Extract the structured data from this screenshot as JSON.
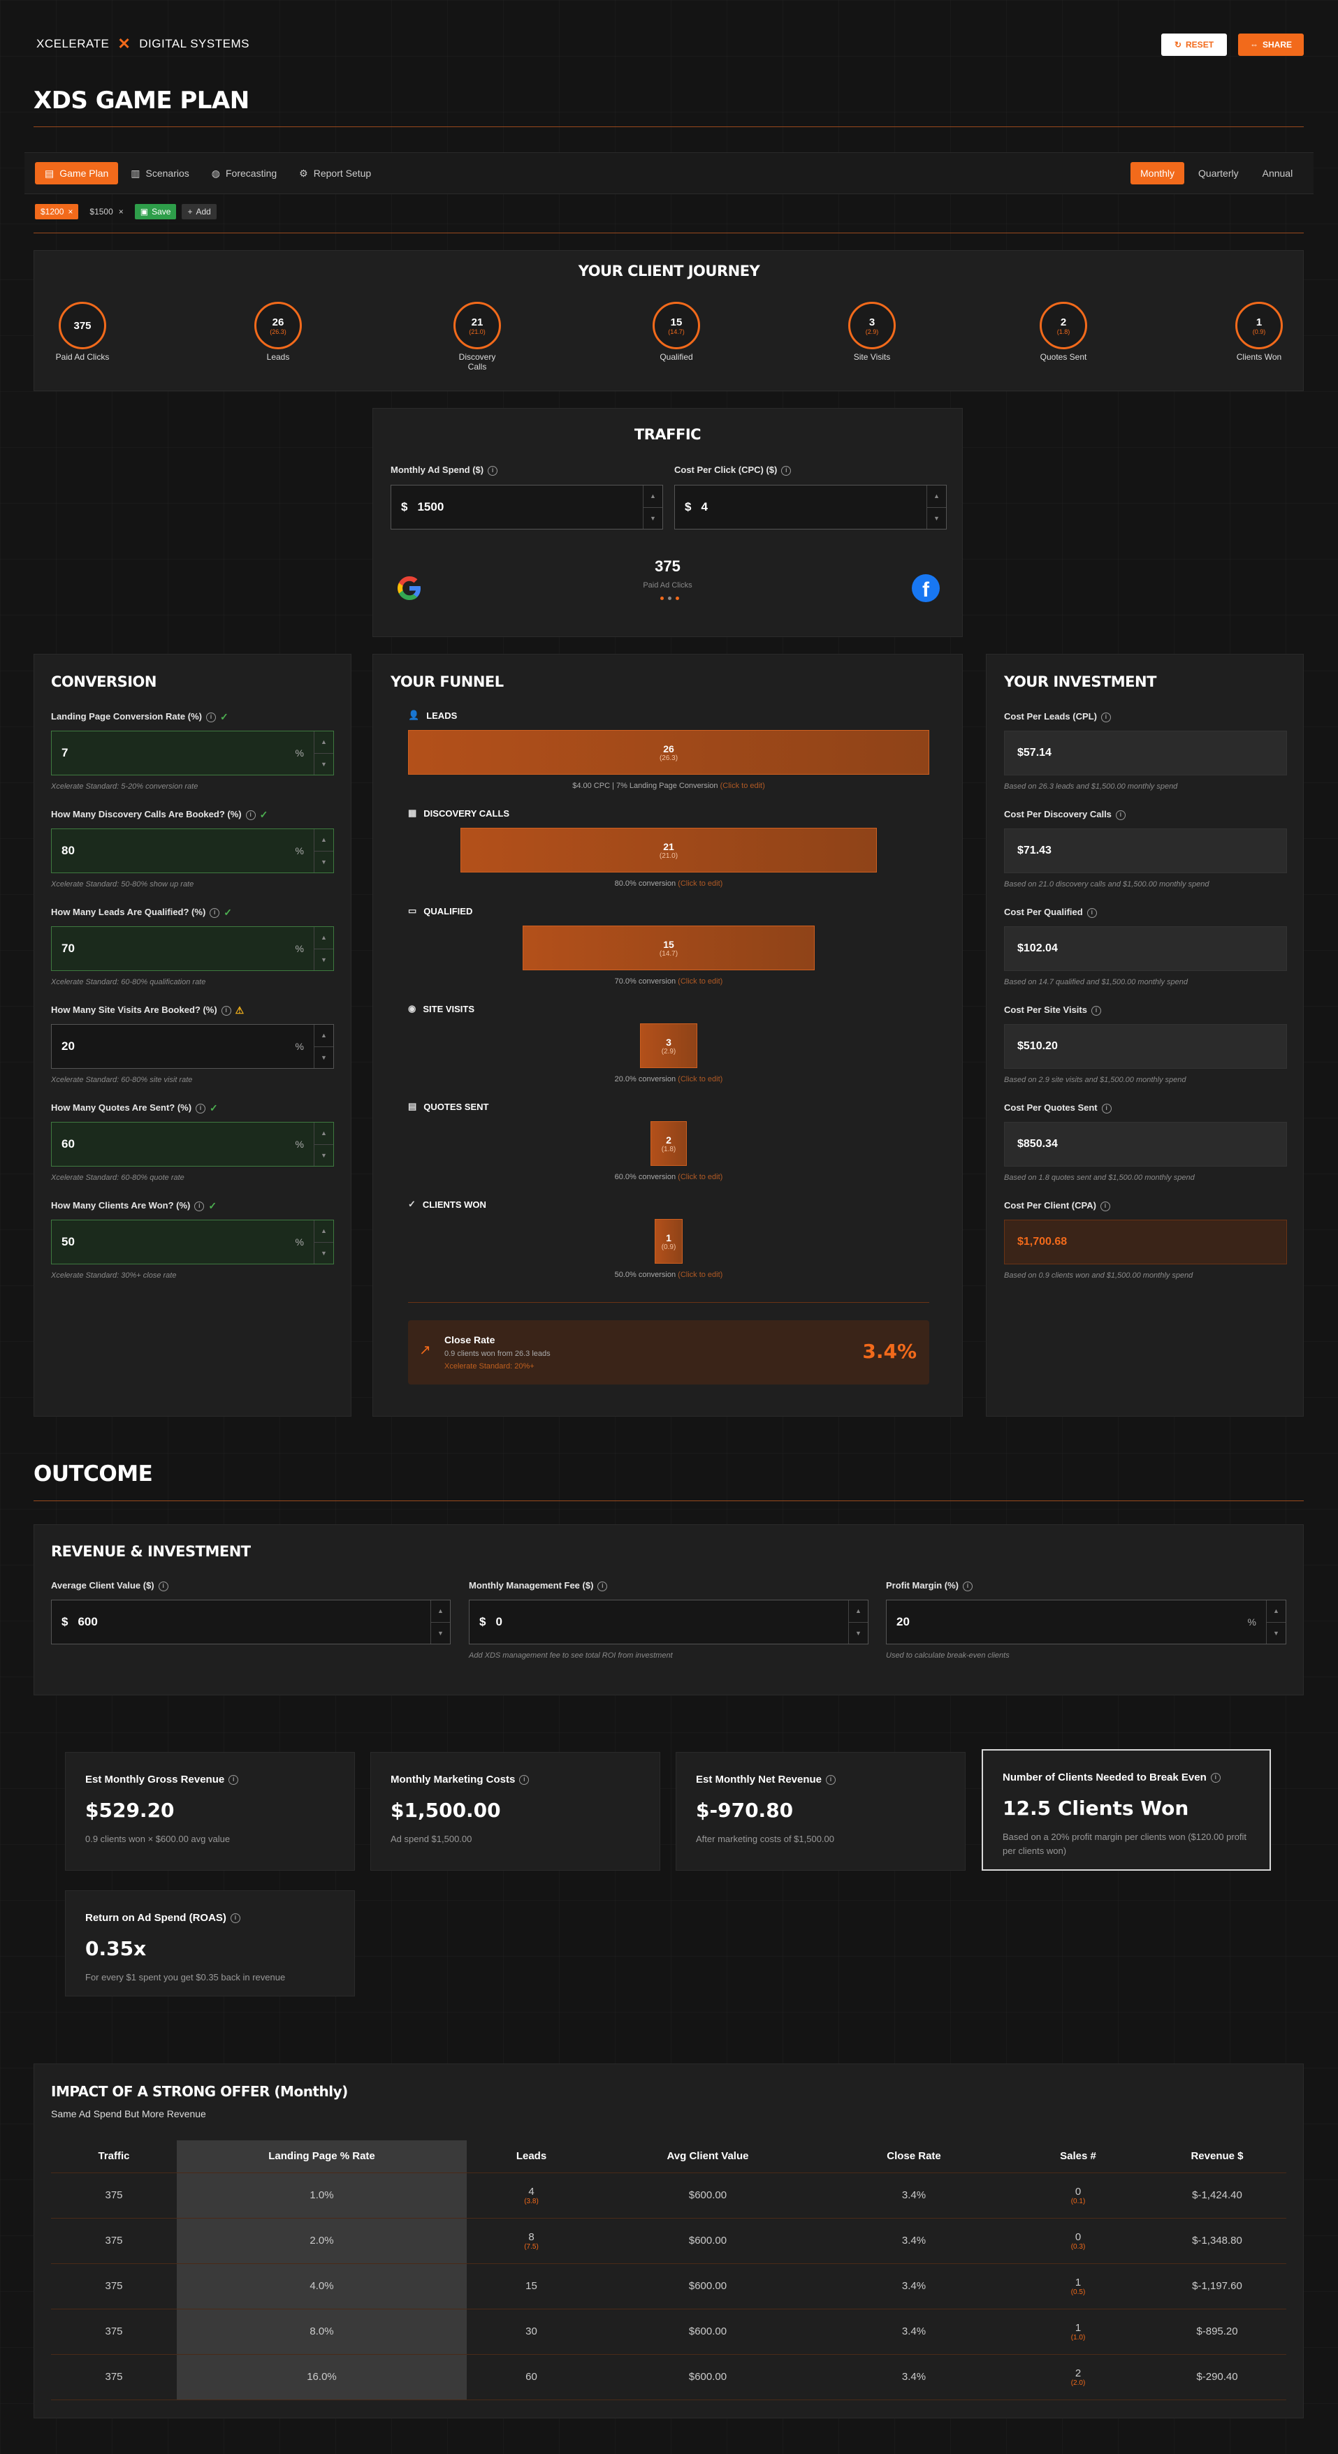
{
  "brand": {
    "name_left": "XCELERATE",
    "name_right": "DIGITAL SYSTEMS"
  },
  "header_buttons": {
    "reset": "RESET",
    "share": "SHARE"
  },
  "page_title": "XDS GAME PLAN",
  "tabs": [
    "Game Plan",
    "Scenarios",
    "Forecasting",
    "Report Setup"
  ],
  "periods": [
    "Monthly",
    "Quarterly",
    "Annual"
  ],
  "scenario_bar": {
    "chips": [
      "$1200",
      "$1500"
    ],
    "save": "Save",
    "add": "Add"
  },
  "journey": {
    "title": "YOUR CLIENT JOURNEY",
    "steps": [
      {
        "value": "375",
        "sub": "",
        "label": "Paid Ad Clicks"
      },
      {
        "value": "26",
        "sub": "(26.3)",
        "label": "Leads"
      },
      {
        "value": "21",
        "sub": "(21.0)",
        "label": "Discovery Calls"
      },
      {
        "value": "15",
        "sub": "(14.7)",
        "label": "Qualified"
      },
      {
        "value": "3",
        "sub": "(2.9)",
        "label": "Site Visits"
      },
      {
        "value": "2",
        "sub": "(1.8)",
        "label": "Quotes Sent"
      },
      {
        "value": "1",
        "sub": "(0.9)",
        "label": "Clients Won"
      }
    ]
  },
  "traffic": {
    "title": "TRAFFIC",
    "spend_label": "Monthly Ad Spend ($)",
    "spend_value": "1500",
    "cpc_label": "Cost Per Click (CPC) ($)",
    "cpc_value": "4",
    "currency": "$",
    "clicks": "375",
    "clicks_label": "Paid Ad Clicks"
  },
  "conversion": {
    "title": "CONVERSION",
    "fields": [
      {
        "label": "Landing Page Conversion Rate (%)",
        "value": "7",
        "hint": "Xcelerate Standard: 5-20% conversion rate",
        "status": "ok"
      },
      {
        "label": "How Many Discovery Calls Are Booked? (%)",
        "value": "80",
        "hint": "Xcelerate Standard: 50-80% show up rate",
        "status": "ok"
      },
      {
        "label": "How Many Leads Are Qualified? (%)",
        "value": "70",
        "hint": "Xcelerate Standard: 60-80% qualification rate",
        "status": "ok"
      },
      {
        "label": "How Many Site Visits Are Booked? (%)",
        "value": "20",
        "hint": "Xcelerate Standard: 60-80% site visit rate",
        "status": "warn"
      },
      {
        "label": "How Many Quotes Are Sent? (%)",
        "value": "60",
        "hint": "Xcelerate Standard: 60-80% quote rate",
        "status": "ok"
      },
      {
        "label": "How Many Clients Are Won? (%)",
        "value": "50",
        "hint": "Xcelerate Standard: 30%+ close rate",
        "status": "ok"
      }
    ],
    "pct": "%"
  },
  "funnel": {
    "title": "YOUR FUNNEL",
    "click_edit": "(Click to edit)",
    "stages": [
      {
        "label": "LEADS",
        "value": "26",
        "sub": "(26.3)",
        "note": "$4.00 CPC | 7% Landing Page Conversion",
        "width_pct": 100
      },
      {
        "label": "DISCOVERY CALLS",
        "value": "21",
        "sub": "(21.0)",
        "note": "80.0% conversion",
        "width_pct": 80
      },
      {
        "label": "QUALIFIED",
        "value": "15",
        "sub": "(14.7)",
        "note": "70.0% conversion",
        "width_pct": 56
      },
      {
        "label": "SITE VISITS",
        "value": "3",
        "sub": "(2.9)",
        "note": "20.0% conversion",
        "width_pct": 11
      },
      {
        "label": "QUOTES SENT",
        "value": "2",
        "sub": "(1.8)",
        "note": "60.0% conversion",
        "width_pct": 7
      },
      {
        "label": "CLIENTS WON",
        "value": "1",
        "sub": "(0.9)",
        "note": "50.0% conversion",
        "width_pct": 5
      }
    ],
    "close_rate": {
      "title": "Close Rate",
      "desc": "0.9 clients won from 26.3 leads",
      "standard": "Xcelerate Standard: 20%+",
      "value": "3.4%"
    }
  },
  "investment": {
    "title": "YOUR INVESTMENT",
    "items": [
      {
        "label": "Cost Per Leads (CPL)",
        "value": "$57.14",
        "note": "Based on 26.3 leads and $1,500.00 monthly spend"
      },
      {
        "label": "Cost Per Discovery Calls",
        "value": "$71.43",
        "note": "Based on 21.0 discovery calls and $1,500.00 monthly spend"
      },
      {
        "label": "Cost Per Qualified",
        "value": "$102.04",
        "note": "Based on 14.7 qualified and $1,500.00 monthly spend"
      },
      {
        "label": "Cost Per Site Visits",
        "value": "$510.20",
        "note": "Based on 2.9 site visits and $1,500.00 monthly spend"
      },
      {
        "label": "Cost Per Quotes Sent",
        "value": "$850.34",
        "note": "Based on 1.8 quotes sent and $1,500.00 monthly spend"
      },
      {
        "label": "Cost Per Client (CPA)",
        "value": "$1,700.68",
        "note": "Based on 0.9 clients won and $1,500.00 monthly spend"
      }
    ]
  },
  "outcome": {
    "title": "OUTCOME",
    "rev_title": "REVENUE & INVESTMENT",
    "acv_label": "Average Client Value ($)",
    "acv_value": "600",
    "fee_label": "Monthly Management Fee ($)",
    "fee_value": "0",
    "fee_hint": "Add XDS management fee to see total ROI from investment",
    "margin_label": "Profit Margin (%)",
    "margin_value": "20",
    "margin_hint": "Used to calculate break-even clients"
  },
  "metrics": [
    {
      "title": "Est Monthly Gross Revenue",
      "value": "$529.20",
      "desc": "0.9 clients won × $600.00 avg value"
    },
    {
      "title": "Monthly Marketing Costs",
      "value": "$1,500.00",
      "desc": "Ad spend $1,500.00"
    },
    {
      "title": "Est Monthly Net Revenue",
      "value": "$-970.80",
      "desc": "After marketing costs of $1,500.00"
    },
    {
      "title": "Number of Clients Needed to Break Even",
      "value": "12.5 Clients Won",
      "desc": "Based on a 20% profit margin per clients won ($120.00 profit per clients won)"
    },
    {
      "title": "Return on Ad Spend (ROAS)",
      "value": "0.35x",
      "desc": "For every $1 spent you get $0.35 back in revenue"
    }
  ],
  "impact": {
    "title": "IMPACT OF A STRONG OFFER (Monthly)",
    "subtitle": "Same Ad Spend But More Revenue",
    "columns": [
      "Traffic",
      "Landing Page % Rate",
      "Leads",
      "Avg Client Value",
      "Close Rate",
      "Sales #",
      "Revenue $"
    ],
    "rows": [
      {
        "traffic": "375",
        "rate": "1.0%",
        "leads": "4",
        "leads_sub": "(3.8)",
        "acv": "$600.00",
        "close": "3.4%",
        "sales": "0",
        "sales_sub": "(0.1)",
        "rev": "$-1,424.40"
      },
      {
        "traffic": "375",
        "rate": "2.0%",
        "leads": "8",
        "leads_sub": "(7.5)",
        "acv": "$600.00",
        "close": "3.4%",
        "sales": "0",
        "sales_sub": "(0.3)",
        "rev": "$-1,348.80"
      },
      {
        "traffic": "375",
        "rate": "4.0%",
        "leads": "15",
        "leads_sub": "",
        "acv": "$600.00",
        "close": "3.4%",
        "sales": "1",
        "sales_sub": "(0.5)",
        "rev": "$-1,197.60"
      },
      {
        "traffic": "375",
        "rate": "8.0%",
        "leads": "30",
        "leads_sub": "",
        "acv": "$600.00",
        "close": "3.4%",
        "sales": "1",
        "sales_sub": "(1.0)",
        "rev": "$-895.20"
      },
      {
        "traffic": "375",
        "rate": "16.0%",
        "leads": "60",
        "leads_sub": "",
        "acv": "$600.00",
        "close": "3.4%",
        "sales": "2",
        "sales_sub": "(2.0)",
        "rev": "$-290.40"
      }
    ]
  },
  "colors": {
    "accent": "#f26a1b",
    "good": "#3f7a40",
    "warn": "#f2b01b"
  }
}
